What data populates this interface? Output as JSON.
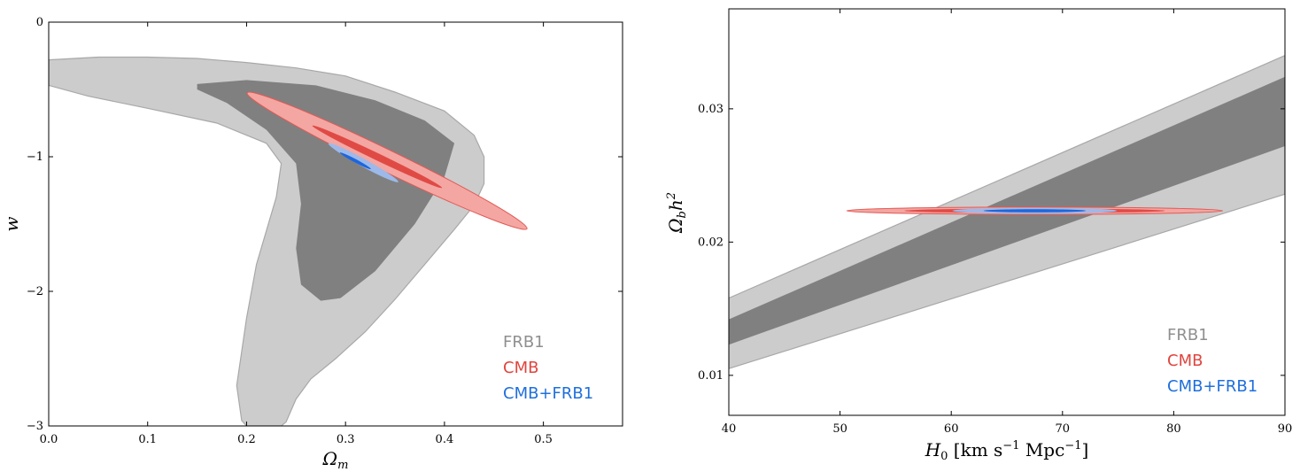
{
  "chart_data": [
    {
      "type": "contour",
      "xlabel": "Ω_m",
      "ylabel": "w",
      "xlim": [
        0.0,
        0.58
      ],
      "ylim": [
        -3,
        0
      ],
      "xticks": [
        0.0,
        0.1,
        0.2,
        0.3,
        0.4,
        0.5
      ],
      "xtick_labels": [
        "0.0",
        "0.1",
        "0.2",
        "0.3",
        "0.4",
        "0.5"
      ],
      "yticks": [
        -3,
        -2,
        -1,
        0
      ],
      "ytick_labels": [
        "−3",
        "−2",
        "−1",
        "0"
      ],
      "legend": [
        "FRB1",
        "CMB",
        "CMB+FRB1"
      ],
      "legend_loc": "lower-right",
      "series": [
        {
          "name": "FRB1",
          "level": "95%",
          "color": "#cccccc",
          "points": [
            [
              0.0,
              -0.28
            ],
            [
              0.05,
              -0.26
            ],
            [
              0.1,
              -0.26
            ],
            [
              0.15,
              -0.27
            ],
            [
              0.2,
              -0.3
            ],
            [
              0.25,
              -0.34
            ],
            [
              0.3,
              -0.4
            ],
            [
              0.35,
              -0.52
            ],
            [
              0.4,
              -0.66
            ],
            [
              0.43,
              -0.84
            ],
            [
              0.44,
              -1.0
            ],
            [
              0.44,
              -1.2
            ],
            [
              0.43,
              -1.36
            ],
            [
              0.41,
              -1.54
            ],
            [
              0.38,
              -1.8
            ],
            [
              0.35,
              -2.06
            ],
            [
              0.32,
              -2.3
            ],
            [
              0.29,
              -2.5
            ],
            [
              0.265,
              -2.65
            ],
            [
              0.25,
              -2.8
            ],
            [
              0.24,
              -2.97
            ],
            [
              0.235,
              -3.0
            ],
            [
              0.2,
              -3.0
            ],
            [
              0.195,
              -2.96
            ],
            [
              0.19,
              -2.7
            ],
            [
              0.2,
              -2.2
            ],
            [
              0.21,
              -1.8
            ],
            [
              0.23,
              -1.3
            ],
            [
              0.235,
              -1.05
            ],
            [
              0.22,
              -0.9
            ],
            [
              0.17,
              -0.75
            ],
            [
              0.1,
              -0.64
            ],
            [
              0.04,
              -0.55
            ],
            [
              0.0,
              -0.47
            ]
          ]
        },
        {
          "name": "FRB1",
          "level": "68%",
          "color": "#808080",
          "points": [
            [
              0.15,
              -0.46
            ],
            [
              0.2,
              -0.43
            ],
            [
              0.27,
              -0.47
            ],
            [
              0.33,
              -0.58
            ],
            [
              0.38,
              -0.73
            ],
            [
              0.41,
              -0.9
            ],
            [
              0.4,
              -1.15
            ],
            [
              0.37,
              -1.5
            ],
            [
              0.33,
              -1.85
            ],
            [
              0.295,
              -2.05
            ],
            [
              0.275,
              -2.07
            ],
            [
              0.255,
              -1.95
            ],
            [
              0.25,
              -1.68
            ],
            [
              0.255,
              -1.35
            ],
            [
              0.25,
              -1.05
            ],
            [
              0.22,
              -0.8
            ],
            [
              0.18,
              -0.6
            ],
            [
              0.15,
              -0.5
            ]
          ]
        },
        {
          "name": "CMB",
          "level": "95%",
          "color": "#f4a6a2",
          "stroke": "#e05a55",
          "ellipse": {
            "cx": 0.342,
            "cy": -1.03,
            "semi_major": 0.505,
            "semi_minor": 0.035,
            "direction": [
              0.28,
              -1.0
            ]
          }
        },
        {
          "name": "CMB",
          "level": "68%",
          "color": "#e04a45",
          "ellipse": {
            "cx": 0.332,
            "cy": -1.0,
            "semi_major": 0.345,
            "semi_minor": 0.017,
            "direction": [
              0.19,
              -0.67
            ]
          }
        },
        {
          "name": "CMB+FRB1",
          "level": "95%",
          "color": "#9db9ea",
          "ellipse": {
            "cx": 0.318,
            "cy": -1.045,
            "semi_major": 0.28,
            "semi_minor": 0.027,
            "direction": [
              0.126,
              -0.51
            ]
          }
        },
        {
          "name": "CMB+FRB1",
          "level": "68%",
          "color": "#1d66dd",
          "ellipse": {
            "cx": 0.31,
            "cy": -1.03,
            "semi_major": 0.17,
            "semi_minor": 0.016,
            "direction": [
              0.092,
              -0.36
            ]
          }
        }
      ]
    },
    {
      "type": "contour",
      "xlabel": "H₀ [km s⁻¹ Mpc⁻¹]",
      "ylabel": "Ω_b h²",
      "xlim": [
        40,
        90
      ],
      "ylim": [
        0.007,
        0.0375
      ],
      "xticks": [
        40,
        50,
        60,
        70,
        80,
        90
      ],
      "xtick_labels": [
        "40",
        "50",
        "60",
        "70",
        "80",
        "90"
      ],
      "yticks": [
        0.01,
        0.02,
        0.03
      ],
      "ytick_labels": [
        "0.01",
        "0.02",
        "0.03"
      ],
      "legend": [
        "FRB1",
        "CMB",
        "CMB+FRB1"
      ],
      "legend_loc": "lower-right",
      "series": [
        {
          "name": "FRB1",
          "level": "95%",
          "color": "#cccccc",
          "points": [
            [
              40,
              0.0158
            ],
            [
              90,
              0.034
            ],
            [
              90,
              0.0236
            ],
            [
              40,
              0.0105
            ]
          ]
        },
        {
          "name": "FRB1",
          "level": "68%",
          "color": "#808080",
          "points": [
            [
              40,
              0.0142
            ],
            [
              90,
              0.0324
            ],
            [
              90,
              0.0272
            ],
            [
              40,
              0.0123
            ]
          ]
        },
        {
          "name": "CMB",
          "level": "95%",
          "color": "#f4a6a2",
          "stroke": "#e05a55",
          "ellipse": {
            "cx": 67.5,
            "cy": 0.02235,
            "rx": 16.9,
            "ry": 0.00027
          }
        },
        {
          "name": "CMB",
          "level": "68%",
          "color": "#e04a45",
          "ellipse": {
            "cx": 67.5,
            "cy": 0.02235,
            "rx": 11.7,
            "ry": 0.00016
          }
        },
        {
          "name": "CMB+FRB1",
          "level": "95%",
          "color": "#9db9ea",
          "ellipse": {
            "cx": 67.5,
            "cy": 0.02235,
            "rx": 7.4,
            "ry": 0.00022
          }
        },
        {
          "name": "CMB+FRB1",
          "level": "68%",
          "color": "#1d66dd",
          "ellipse": {
            "cx": 67.5,
            "cy": 0.02235,
            "rx": 4.6,
            "ry": 0.00012
          }
        }
      ]
    }
  ],
  "legend_colors": {
    "FRB1": "#8f8f8f",
    "CMB": "#e0453e",
    "CMB+FRB1": "#1e6fdc"
  }
}
